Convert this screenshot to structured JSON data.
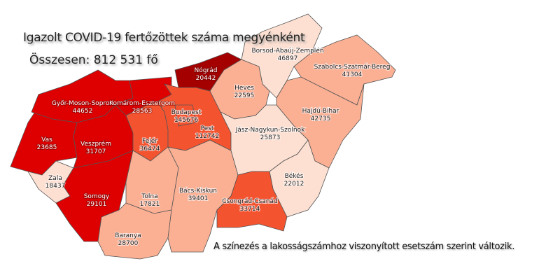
{
  "title": "Igazolt COVID-19 fertőzöttek száma megyénként",
  "total": "Összesen: 812 531 fő",
  "note": "A színezés a lakosságszámhoz viszonyított esetszám szerint változik.",
  "colors": {
    "tier1": "#fde0d2",
    "tier2": "#fbb094",
    "tier3": "#f4532f",
    "tier4": "#de0000",
    "tier5": "#a50000",
    "border": "#555555"
  },
  "counties": [
    {
      "name": "Vas",
      "cases": "23685",
      "tier": "tier4"
    },
    {
      "name": "Győr-Moson-Sopron",
      "cases": "44652",
      "tier": "tier4"
    },
    {
      "name": "Komárom-Esztergom",
      "cases": "28563",
      "tier": "tier4"
    },
    {
      "name": "Veszprém",
      "cases": "31707",
      "tier": "tier4"
    },
    {
      "name": "Zala",
      "cases": "18437",
      "tier": "tier1"
    },
    {
      "name": "Somogy",
      "cases": "29101",
      "tier": "tier4"
    },
    {
      "name": "Fejér",
      "cases": "36474",
      "tier": "tier3"
    },
    {
      "name": "Tolna",
      "cases": "17821",
      "tier": "tier2"
    },
    {
      "name": "Baranya",
      "cases": "28700",
      "tier": "tier2"
    },
    {
      "name": "Bács-Kiskun",
      "cases": "39401",
      "tier": "tier2"
    },
    {
      "name": "Pest",
      "cases": "112742",
      "tier": "tier3"
    },
    {
      "name": "Budapest",
      "cases": "145676",
      "tier": "tier3"
    },
    {
      "name": "Nógrád",
      "cases": "20442",
      "tier": "tier5"
    },
    {
      "name": "Heves",
      "cases": "22595",
      "tier": "tier2"
    },
    {
      "name": "Borsod-Abaúj-Zemplén",
      "cases": "46897",
      "tier": "tier1"
    },
    {
      "name": "Szabolcs-Szatmár-Bereg",
      "cases": "41304",
      "tier": "tier2"
    },
    {
      "name": "Hajdú-Bihar",
      "cases": "42735",
      "tier": "tier2"
    },
    {
      "name": "Jász-Nagykun-Szolnok",
      "cases": "25873",
      "tier": "tier1"
    },
    {
      "name": "Békés",
      "cases": "22012",
      "tier": "tier1"
    },
    {
      "name": "Csongrád-Csanád",
      "cases": "33714",
      "tier": "tier3"
    }
  ]
}
